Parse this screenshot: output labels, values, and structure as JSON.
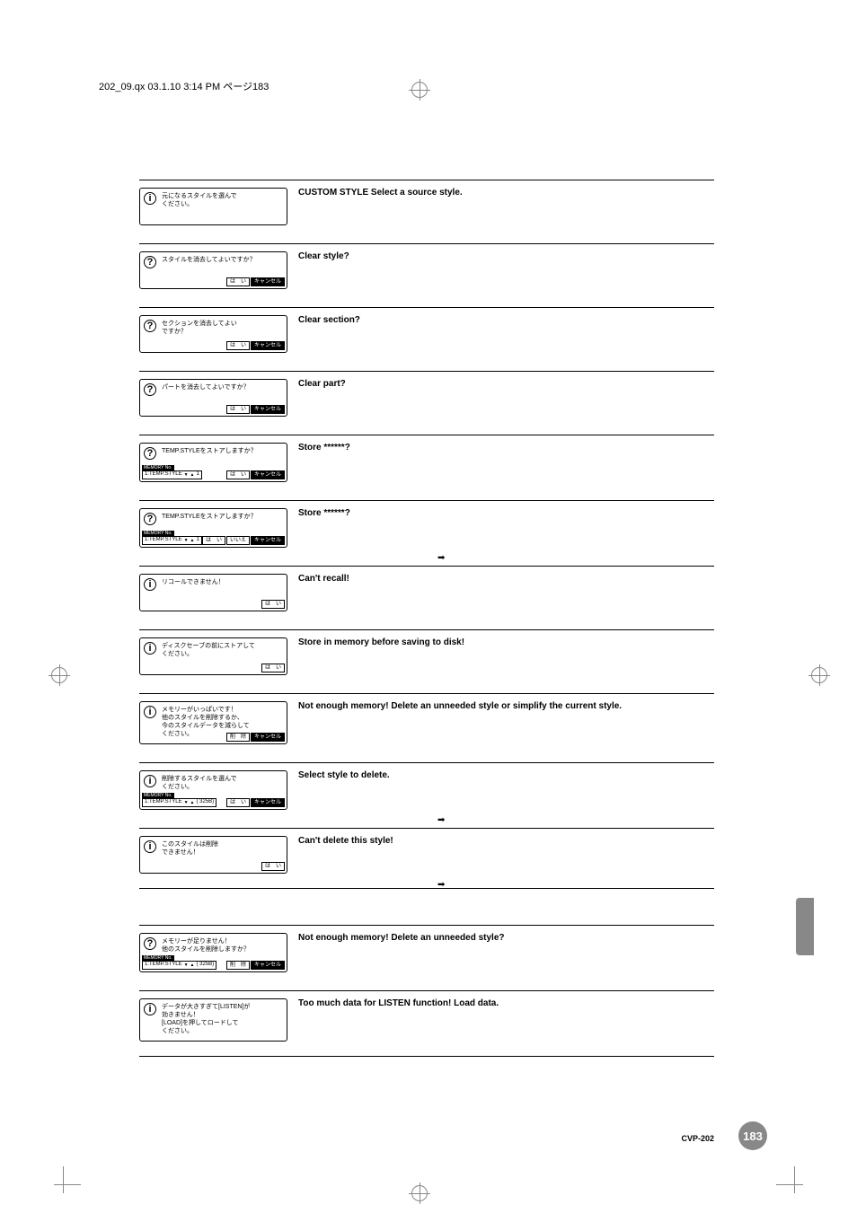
{
  "header": "202_09.qx  03.1.10 3:14 PM  ページ183",
  "footer": {
    "model": "CVP-202",
    "page": "183"
  },
  "btn_hai": "は　い",
  "btn_cancel": "キャンセル",
  "btn_iie": "いいえ",
  "btn_delete": "削　除",
  "memory_no_label": "MEMORY No.",
  "rows": [
    {
      "icon": "i",
      "jp": "元になるスタイルを選んで\nください。",
      "en": "CUSTOM STYLE Select a source style.",
      "buttons": [],
      "memory": false
    },
    {
      "icon": "?",
      "jp": "スタイルを消去してよいですか？",
      "en": "Clear style?",
      "buttons": [
        "hai",
        "cancel"
      ],
      "memory": false
    },
    {
      "icon": "?",
      "jp": "セクションを消去してよい\nですか？",
      "en": "Clear section?",
      "buttons": [
        "hai",
        "cancel"
      ],
      "memory": false
    },
    {
      "icon": "?",
      "jp": "パートを消去してよいですか？",
      "en": "Clear part?",
      "buttons": [
        "hai",
        "cancel"
      ],
      "memory": false
    },
    {
      "icon": "?",
      "jp": "TEMP.STYLEをストアしますか？",
      "en": "Store ******?",
      "buttons": [
        "hai",
        "cancel"
      ],
      "memory": true,
      "memory_text": "1:TEMP.STYLE",
      "memory_suffix": "1"
    },
    {
      "icon": "?",
      "jp": "TEMP.STYLEをストアしますか？",
      "en": "Store ******?",
      "buttons": [
        "hai",
        "iie",
        "cancel"
      ],
      "memory": true,
      "memory_text": "1:TEMP.STYLE",
      "memory_suffix": "1",
      "continue": true
    },
    {
      "icon": "i",
      "jp": "リコールできません！",
      "en": "Can't recall!",
      "buttons": [
        "hai"
      ],
      "memory": false
    },
    {
      "icon": "i",
      "jp": "ディスクセーブの前にストアして\nください。",
      "en": "Store in memory before saving to disk!",
      "buttons": [
        "hai"
      ],
      "memory": false
    },
    {
      "icon": "i",
      "jp": "メモリーがいっぱいです！\n他のスタイルを削除するか、\n今のスタイルデータを減らして\nください｡",
      "en": "Not enough memory! Delete an unneeded style or simplify the current style.",
      "buttons": [
        "delete",
        "cancel"
      ],
      "memory": false
    },
    {
      "icon": "i",
      "jp": "削除するスタイルを選んで\nください。",
      "en": "Select style to delete.",
      "buttons": [
        "hai",
        "cancel"
      ],
      "memory": true,
      "memory_text": "1:TEMP.STYLE",
      "memory_suffix": "( 325B)",
      "continue": true
    },
    {
      "icon": "i",
      "jp": "このスタイルは削除\nできません！",
      "en": "Can't delete this style!",
      "buttons": [
        "hai"
      ],
      "memory": false,
      "continue": true
    }
  ],
  "rows2": [
    {
      "icon": "?",
      "jp": "メモリーが足りません！\n他のスタイルを削除しますか？",
      "en": "Not enough memory! Delete an unneeded style?",
      "buttons": [
        "delete",
        "cancel"
      ],
      "memory": true,
      "memory_text": "1:TEMP.STYLE",
      "memory_suffix": "( 325B)"
    },
    {
      "icon": "i",
      "jp": "データが大きすぎて[LISTEN]が\n効きません！\n[LOAD]を押してロードして\nください。",
      "en": "Too much data for LISTEN function! Load data.",
      "buttons": [],
      "memory": false
    }
  ]
}
